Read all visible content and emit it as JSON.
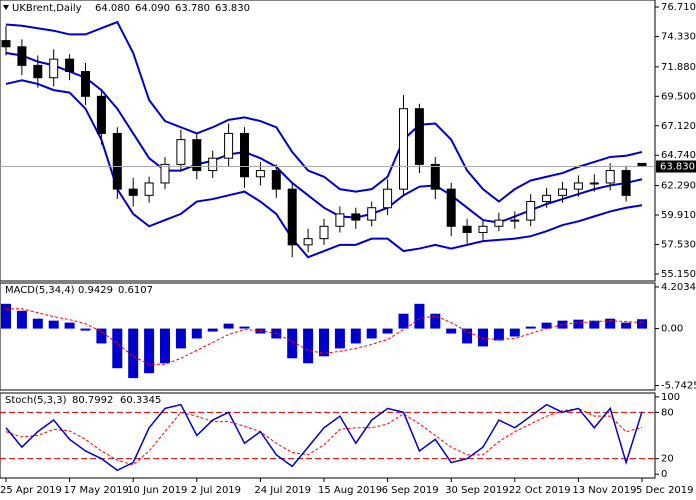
{
  "chart_data": [
    {
      "type": "candlestick",
      "title": "UKBrent,Daily",
      "header_labels": [
        "64.080",
        "64.090",
        "63.780",
        "63.830"
      ],
      "categories": [
        "25 Apr 2019",
        null,
        null,
        null,
        "17 May 2019",
        null,
        null,
        null,
        "10 Jun 2019",
        null,
        null,
        null,
        "2 Jul 2019",
        null,
        null,
        null,
        "24 Jul 2019",
        null,
        null,
        null,
        "15 Aug 2019",
        null,
        null,
        null,
        "6 Sep 2019",
        null,
        null,
        null,
        "30 Sep 2019",
        null,
        null,
        null,
        "22 Oct 2019",
        null,
        null,
        null,
        "13 Nov 2019",
        null,
        null,
        null,
        "5 Dec 2019"
      ],
      "open": [
        74.0,
        73.5,
        72.0,
        71.0,
        72.5,
        71.5,
        69.5,
        66.5,
        62.0,
        61.5,
        62.5,
        64.0,
        66.0,
        63.5,
        64.5,
        66.5,
        63.0,
        63.5,
        62.0,
        57.5,
        58.0,
        59.0,
        60.0,
        59.5,
        60.5,
        62.0,
        68.5,
        64.0,
        62.0,
        59.0,
        58.5,
        59.0,
        59.5,
        59.5,
        61.0,
        61.5,
        62.0,
        62.5,
        62.5,
        63.5,
        64.08
      ],
      "high": [
        75.2,
        74.1,
        72.8,
        73.3,
        72.9,
        72.2,
        70.1,
        67.0,
        62.9,
        63.0,
        64.6,
        66.8,
        66.5,
        65.1,
        67.3,
        67.0,
        64.2,
        64.0,
        62.5,
        58.8,
        59.6,
        60.6,
        60.5,
        61.0,
        62.8,
        69.6,
        68.9,
        64.6,
        62.5,
        59.6,
        59.5,
        60.1,
        60.2,
        61.6,
        62.1,
        62.6,
        63.1,
        63.2,
        64.1,
        63.9,
        64.09
      ],
      "low": [
        72.8,
        71.2,
        70.2,
        70.3,
        70.8,
        68.8,
        65.6,
        61.2,
        60.6,
        60.9,
        62.0,
        63.5,
        62.8,
        62.9,
        63.8,
        62.1,
        62.3,
        61.3,
        56.5,
        56.9,
        57.5,
        58.5,
        58.8,
        59.0,
        59.9,
        61.5,
        63.3,
        61.2,
        58.2,
        57.6,
        57.9,
        58.6,
        58.8,
        59.0,
        60.5,
        60.9,
        61.4,
        61.8,
        61.9,
        61.0,
        63.78
      ],
      "close": [
        73.5,
        72.0,
        71.0,
        72.5,
        71.5,
        69.5,
        66.5,
        62.0,
        61.5,
        62.5,
        64.0,
        66.0,
        63.5,
        64.5,
        66.5,
        63.0,
        63.5,
        62.0,
        57.5,
        58.0,
        59.0,
        60.0,
        59.5,
        60.5,
        62.0,
        68.5,
        64.0,
        62.0,
        59.0,
        58.5,
        59.0,
        59.5,
        59.5,
        61.0,
        61.5,
        62.0,
        62.5,
        62.5,
        63.5,
        61.5,
        63.83
      ],
      "series": [
        {
          "color": "#0000cc",
          "values": [
            75.3,
            75.2,
            75.0,
            74.8,
            74.5,
            74.5,
            75.0,
            75.5,
            73.0,
            69.2,
            67.5,
            67.0,
            66.5,
            67.0,
            67.6,
            67.8,
            67.5,
            67.0,
            65.0,
            63.5,
            63.0,
            62.0,
            61.8,
            62.0,
            63.0,
            66.0,
            67.2,
            67.3,
            66.0,
            63.5,
            62.0,
            61.0,
            62.0,
            62.7,
            63.0,
            63.3,
            63.8,
            64.2,
            64.6,
            64.7,
            65.0
          ]
        },
        {
          "color": "#0000cc",
          "values": [
            73.0,
            72.8,
            72.3,
            72.0,
            71.5,
            71.0,
            70.0,
            68.5,
            66.5,
            64.5,
            63.5,
            63.5,
            64.0,
            64.3,
            64.8,
            65.0,
            64.5,
            63.8,
            62.5,
            61.5,
            60.5,
            59.8,
            59.7,
            60.0,
            60.5,
            61.5,
            62.2,
            62.3,
            61.5,
            60.5,
            59.5,
            59.3,
            59.8,
            60.3,
            60.8,
            61.2,
            61.6,
            62.0,
            62.3,
            62.5,
            62.8
          ]
        },
        {
          "color": "#0000cc",
          "values": [
            70.5,
            70.8,
            70.5,
            70.0,
            69.8,
            68.5,
            66.0,
            62.0,
            60.0,
            59.0,
            59.5,
            60.0,
            61.0,
            61.2,
            61.5,
            61.8,
            61.0,
            60.0,
            58.0,
            56.5,
            57.0,
            57.5,
            57.5,
            58.0,
            58.0,
            57.0,
            57.2,
            57.5,
            57.2,
            57.5,
            57.8,
            57.9,
            58.0,
            58.2,
            58.6,
            59.1,
            59.4,
            59.8,
            60.2,
            60.5,
            60.7
          ]
        }
      ],
      "last_price": {
        "value": 63.83,
        "label": "63.830"
      },
      "ylim": [
        54.58,
        77.28
      ],
      "yticks": [
        {
          "value": 76.71,
          "label": "76.710"
        },
        {
          "value": 74.33,
          "label": "74.330"
        },
        {
          "value": 71.88,
          "label": "71.880"
        },
        {
          "value": 69.5,
          "label": "69.500"
        },
        {
          "value": 67.12,
          "label": "67.120"
        },
        {
          "value": 64.74,
          "label": "64.740"
        },
        {
          "value": 62.29,
          "label": "62.290"
        },
        {
          "value": 59.91,
          "label": "59.910"
        },
        {
          "value": 57.53,
          "label": "57.530"
        },
        {
          "value": 55.15,
          "label": "55.150"
        }
      ]
    },
    {
      "type": "macd",
      "title": "MACD(5,34,4)",
      "values": [
        2.5,
        1.8,
        1.0,
        0.8,
        0.6,
        -0.2,
        -1.5,
        -4.0,
        -5.0,
        -4.5,
        -3.5,
        -2.0,
        -1.0,
        -0.3,
        0.5,
        0.2,
        -0.5,
        -1.0,
        -3.0,
        -3.5,
        -2.8,
        -2.0,
        -1.5,
        -1.0,
        -0.5,
        1.5,
        2.5,
        1.5,
        -0.5,
        -1.5,
        -1.8,
        -1.2,
        -0.8,
        0.2,
        0.6,
        0.8,
        0.9,
        0.8,
        1.0,
        0.6,
        0.9429
      ],
      "color": "#0000cc",
      "signal": [
        2.0,
        2.0,
        1.6,
        1.2,
        0.9,
        0.5,
        -0.3,
        -1.5,
        -2.8,
        -3.6,
        -3.6,
        -3.0,
        -2.2,
        -1.4,
        -0.6,
        -0.1,
        -0.2,
        -0.5,
        -1.3,
        -2.2,
        -2.5,
        -2.3,
        -2.0,
        -1.6,
        -1.1,
        -0.1,
        1.0,
        1.3,
        0.6,
        -0.3,
        -1.0,
        -1.1,
        -1.0,
        -0.5,
        0.0,
        0.4,
        0.6,
        0.7,
        0.8,
        0.7,
        0.6107
      ],
      "signal_color": "#ff0000",
      "ylim": [
        -6.2,
        4.6
      ],
      "yticks": [
        4.2034,
        {
          "value": 0,
          "label": "0.00"
        },
        -5.7425
      ]
    },
    {
      "type": "stochastic",
      "title": "Stoch(5,3,3)",
      "k": [
        60,
        35,
        55,
        70,
        45,
        30,
        20,
        5,
        15,
        60,
        85,
        90,
        50,
        70,
        80,
        40,
        55,
        25,
        10,
        35,
        60,
        75,
        40,
        70,
        85,
        80,
        30,
        45,
        15,
        20,
        35,
        70,
        60,
        75,
        90,
        80,
        85,
        60,
        85,
        15,
        80.7992
      ],
      "d": [
        55,
        48,
        50,
        58,
        56,
        45,
        30,
        18,
        12,
        30,
        55,
        80,
        75,
        68,
        68,
        62,
        55,
        40,
        28,
        25,
        38,
        58,
        60,
        60,
        65,
        78,
        65,
        50,
        35,
        25,
        25,
        42,
        55,
        65,
        75,
        82,
        85,
        75,
        75,
        55,
        60.3345
      ],
      "k_color": "#0000cc",
      "d_color": "#ff0000",
      "levels": [
        80,
        20
      ],
      "level_color": "#cc0000",
      "ylim": [
        -5,
        105
      ],
      "yticks": [
        100,
        80,
        20,
        0
      ]
    }
  ]
}
